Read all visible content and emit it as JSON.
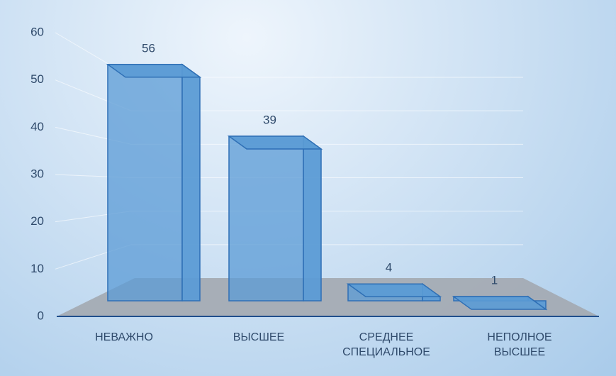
{
  "chart_data": {
    "type": "bar3d",
    "categories": [
      "НЕВАЖНО",
      "ВЫСШЕЕ",
      "СРЕДНЕЕ СПЕЦИАЛЬНОЕ",
      "НЕПОЛНОЕ ВЫСШЕЕ"
    ],
    "values": [
      56,
      39,
      4,
      1
    ],
    "color": "#5b9bd5",
    "ylim": [
      0,
      60
    ],
    "yticks": [
      0,
      10,
      20,
      30,
      40,
      50,
      60
    ],
    "grid": true
  }
}
